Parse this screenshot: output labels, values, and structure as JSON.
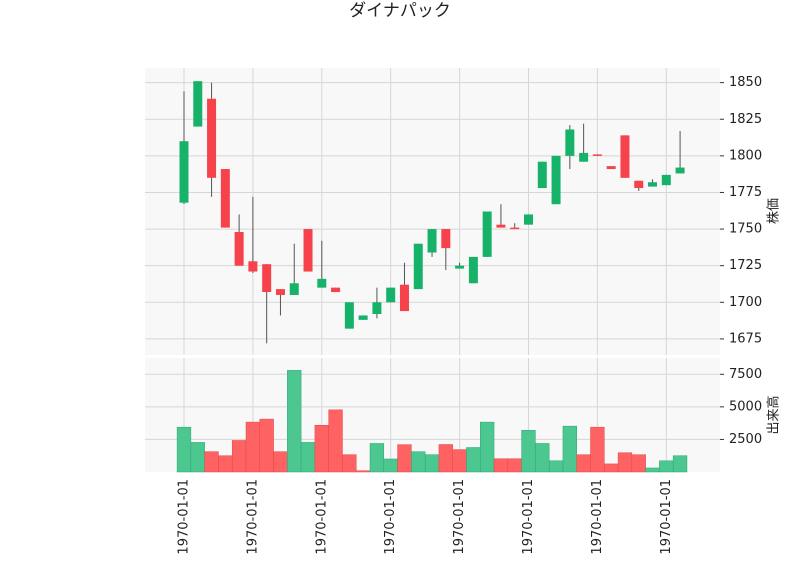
{
  "chart_data": {
    "type": "candlestick",
    "title": "ダイナパック",
    "ylabel": "株価",
    "y2label": "出来高",
    "categories": [
      "1970-01-01",
      null,
      null,
      null,
      null,
      "1970-01-01",
      null,
      null,
      null,
      null,
      "1970-01-01",
      null,
      null,
      null,
      null,
      "1970-01-01",
      null,
      null,
      null,
      null,
      "1970-01-01",
      null,
      null,
      null,
      null,
      "1970-01-01",
      null,
      null,
      null,
      null,
      "1970-01-01",
      null,
      null,
      null,
      null,
      "1970-01-01",
      null
    ],
    "open": [
      1768,
      1820,
      1839,
      1791,
      1748,
      1728,
      1726,
      1709,
      1705,
      1750,
      1710,
      1710,
      1682,
      1688,
      1692,
      1700,
      1712,
      1709,
      1734,
      1750,
      1723,
      1713,
      1731,
      1753,
      1751,
      1753,
      1778,
      1767,
      1800,
      1796,
      1801,
      1793,
      1814,
      1783,
      1779,
      1780,
      1788
    ],
    "high": [
      1844,
      1851,
      1850,
      1791,
      1760,
      1772,
      1726,
      1709,
      1740,
      1750,
      1742,
      1710,
      1700,
      1691,
      1710,
      1710,
      1727,
      1740,
      1750,
      1750,
      1727,
      1731,
      1762,
      1767,
      1754,
      1760,
      1796,
      1800,
      1821,
      1822,
      1801,
      1793,
      1814,
      1783,
      1784,
      1787,
      1817
    ],
    "low": [
      1767,
      1820,
      1772,
      1751,
      1725,
      1720,
      1672,
      1691,
      1705,
      1721,
      1710,
      1707,
      1682,
      1688,
      1689,
      1700,
      1694,
      1709,
      1731,
      1722,
      1723,
      1713,
      1731,
      1751,
      1750,
      1753,
      1778,
      1767,
      1791,
      1796,
      1800,
      1791,
      1785,
      1776,
      1779,
      1780,
      1788
    ],
    "close": [
      1810,
      1851,
      1785,
      1751,
      1725,
      1721,
      1707,
      1705,
      1713,
      1721,
      1716,
      1707,
      1700,
      1691,
      1700,
      1710,
      1694,
      1740,
      1750,
      1737,
      1725,
      1731,
      1762,
      1751,
      1750,
      1760,
      1796,
      1800,
      1818,
      1802,
      1800,
      1791,
      1785,
      1778,
      1782,
      1787,
      1792
    ],
    "volume": [
      3440,
      2270,
      1560,
      1250,
      2420,
      3830,
      4060,
      1560,
      7800,
      2270,
      3590,
      4770,
      1330,
      100,
      2190,
      1000,
      2100,
      1560,
      1330,
      2110,
      1720,
      1880,
      3830,
      1020,
      1020,
      3200,
      2190,
      860,
      3520,
      1330,
      3440,
      620,
      1480,
      1330,
      310,
      860,
      1250
    ],
    "up_color": "#17b26a",
    "down_color": "#f5424b",
    "volume_up_color": "#4cc790",
    "volume_down_color": "#ff6262",
    "ylim": [
      1664,
      1860
    ],
    "yticks": [
      1675,
      1700,
      1725,
      1750,
      1775,
      1800,
      1825,
      1850
    ],
    "y2lim": [
      0,
      8750
    ],
    "y2ticks": [
      2500,
      5000,
      7500
    ],
    "grid": true
  }
}
